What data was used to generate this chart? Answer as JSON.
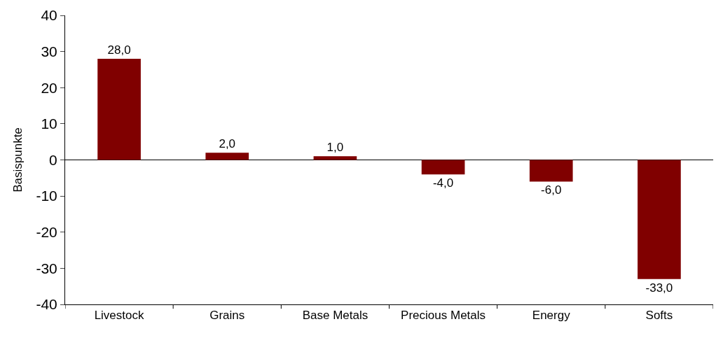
{
  "chart_data": {
    "type": "bar",
    "ylabel": "Basispunkte",
    "categories": [
      "Livestock",
      "Grains",
      "Base Metals",
      "Precious Metals",
      "Energy",
      "Softs"
    ],
    "values": [
      28.0,
      2.0,
      1.0,
      -4.0,
      -6.0,
      -33.0
    ],
    "value_labels": [
      "28,0",
      "2,0",
      "1,0",
      "-4,0",
      "-6,0",
      "-33,0"
    ],
    "color": "#800000",
    "ylim": [
      -40,
      40
    ],
    "yticks": [
      -40,
      -30,
      -20,
      -10,
      0,
      10,
      20,
      30,
      40
    ],
    "ref_lines": [
      {
        "axis": "y",
        "value": 0,
        "color": "#000000"
      }
    ],
    "legend": false
  }
}
